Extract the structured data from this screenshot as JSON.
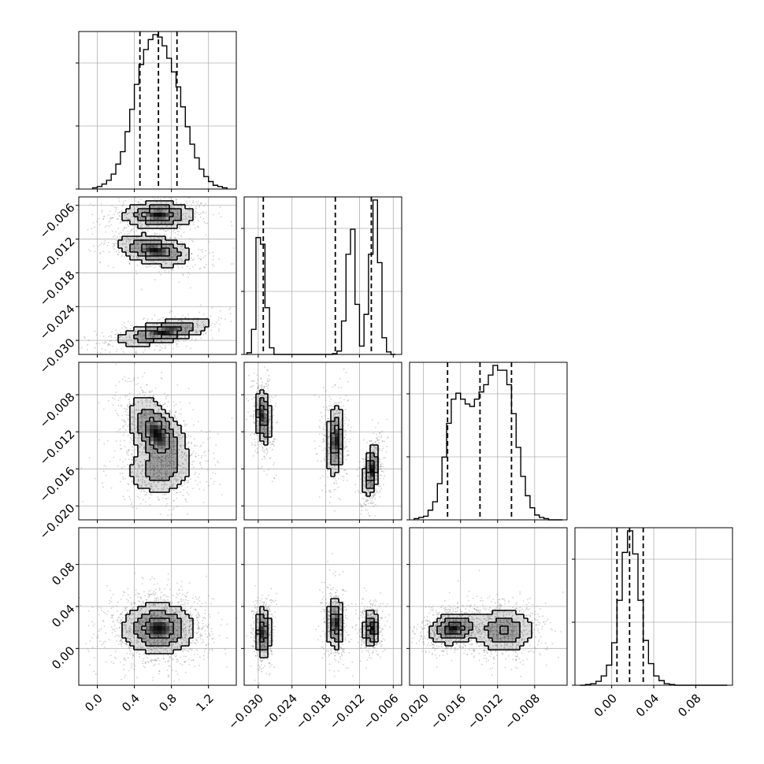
{
  "chart_data": {
    "type": "corner",
    "grid": true,
    "colors": {
      "line": "#000000",
      "grid": "#b0b0b0",
      "density": "#000000",
      "points": "#7a7a7a",
      "background": "#ffffff"
    },
    "parameters": [
      {
        "range": [
          -0.2,
          1.5
        ],
        "ticks": [
          0.0,
          0.4,
          0.8,
          1.2
        ],
        "tick_labels": [
          "0.0",
          "0.4",
          "0.8",
          "1.2"
        ]
      },
      {
        "range": [
          -0.0325,
          -0.0045
        ],
        "ticks": [
          -0.03,
          -0.024,
          -0.018,
          -0.012,
          -0.006
        ],
        "tick_labels": [
          "−0.030",
          "−0.024",
          "−0.018",
          "−0.012",
          "−0.006"
        ]
      },
      {
        "range": [
          -0.0215,
          -0.0045
        ],
        "ticks": [
          -0.02,
          -0.016,
          -0.012,
          -0.008
        ],
        "tick_labels": [
          "−0.020",
          "−0.016",
          "−0.012",
          "−0.008"
        ]
      },
      {
        "range": [
          -0.035,
          0.115
        ],
        "ticks": [
          0.0,
          0.04,
          0.08
        ],
        "tick_labels": [
          "0.00",
          "0.04",
          "0.08"
        ]
      }
    ],
    "marginals": [
      {
        "param": 0,
        "quantiles": [
          0.46,
          0.66,
          0.86
        ],
        "bins": [
          -0.05,
          0.0,
          0.05,
          0.1,
          0.15,
          0.2,
          0.25,
          0.3,
          0.35,
          0.4,
          0.45,
          0.5,
          0.55,
          0.6,
          0.65,
          0.7,
          0.75,
          0.8,
          0.85,
          0.9,
          0.95,
          1.0,
          1.05,
          1.1,
          1.15,
          1.2,
          1.25,
          1.3,
          1.35,
          1.4
        ],
        "counts": [
          1,
          2,
          4,
          7,
          12,
          20,
          30,
          46,
          64,
          84,
          100,
          112,
          120,
          124,
          122,
          115,
          105,
          94,
          82,
          66,
          50,
          36,
          25,
          16,
          10,
          6,
          3,
          2,
          1
        ]
      },
      {
        "param": 1,
        "quantiles": [
          -0.0291,
          -0.0163,
          -0.0099
        ],
        "bins": [
          -0.032,
          -0.0312,
          -0.0304,
          -0.0296,
          -0.0288,
          -0.028,
          -0.0272,
          -0.0264,
          -0.0256,
          -0.0248,
          -0.024,
          -0.0232,
          -0.0224,
          -0.0216,
          -0.0208,
          -0.02,
          -0.0192,
          -0.0184,
          -0.0176,
          -0.0168,
          -0.016,
          -0.0152,
          -0.0144,
          -0.0136,
          -0.0128,
          -0.012,
          -0.0112,
          -0.0104,
          -0.0096,
          -0.0088,
          -0.008,
          -0.0072,
          -0.0064,
          -0.0056
        ],
        "counts": [
          2,
          30,
          140,
          132,
          56,
          8,
          0,
          0,
          0,
          0,
          0,
          0,
          0,
          0,
          0,
          0,
          0,
          0,
          0,
          1,
          4,
          40,
          120,
          150,
          60,
          10,
          48,
          120,
          185,
          110,
          20,
          3,
          0
        ]
      },
      {
        "param": 2,
        "quantiles": [
          -0.0174,
          -0.0139,
          -0.0105
        ],
        "bins": [
          -0.021,
          -0.0205,
          -0.02,
          -0.0195,
          -0.019,
          -0.0185,
          -0.018,
          -0.0175,
          -0.017,
          -0.0165,
          -0.016,
          -0.0155,
          -0.015,
          -0.0145,
          -0.014,
          -0.0135,
          -0.013,
          -0.0125,
          -0.012,
          -0.0115,
          -0.011,
          -0.0105,
          -0.01,
          -0.0095,
          -0.009,
          -0.0085,
          -0.008,
          -0.0075,
          -0.007,
          -0.0065,
          -0.006,
          -0.0055,
          -0.005
        ],
        "counts": [
          1,
          2,
          3,
          8,
          15,
          30,
          52,
          80,
          100,
          105,
          100,
          96,
          94,
          100,
          106,
          112,
          120,
          128,
          124,
          124,
          112,
          88,
          60,
          36,
          20,
          10,
          4,
          2,
          1,
          0,
          0,
          0
        ]
      },
      {
        "param": 3,
        "quantiles": [
          0.005,
          0.017,
          0.03
        ],
        "bins": [
          -0.03,
          -0.025,
          -0.02,
          -0.015,
          -0.01,
          -0.005,
          0.0,
          0.005,
          0.01,
          0.015,
          0.02,
          0.025,
          0.03,
          0.035,
          0.04,
          0.045,
          0.05,
          0.055,
          0.06,
          0.065,
          0.07,
          0.075,
          0.08,
          0.085,
          0.09,
          0.095,
          0.1,
          0.105,
          0.11
        ],
        "counts": [
          0,
          1,
          2,
          5,
          12,
          26,
          55,
          110,
          172,
          200,
          170,
          110,
          58,
          28,
          12,
          6,
          2,
          1,
          0,
          0,
          0,
          0,
          0,
          0,
          0,
          0,
          0,
          0
        ]
      }
    ],
    "joint": [
      {
        "x": 0,
        "y": 1,
        "modes": [
          {
            "cx": 0.66,
            "cy": -0.0077,
            "sx": 0.21,
            "sy": 0.00125,
            "rho": 0.0,
            "w": 1.0
          },
          {
            "cx": 0.62,
            "cy": -0.014,
            "sx": 0.21,
            "sy": 0.0015,
            "rho": -0.35,
            "w": 1.0
          },
          {
            "cx": 0.72,
            "cy": -0.0285,
            "sx": 0.27,
            "sy": 0.0013,
            "rho": 0.6,
            "w": 1.0
          }
        ]
      },
      {
        "x": 0,
        "y": 2,
        "modes": [
          {
            "cx": 0.58,
            "cy": -0.0115,
            "sx": 0.14,
            "sy": 0.002,
            "rho": -0.4,
            "w": 1.0
          },
          {
            "cx": 0.72,
            "cy": -0.0128,
            "sx": 0.15,
            "sy": 0.0017,
            "rho": -0.3,
            "w": 0.8
          },
          {
            "cx": 0.66,
            "cy": -0.0163,
            "sx": 0.2,
            "sy": 0.0014,
            "rho": 0.0,
            "w": 0.9
          }
        ]
      },
      {
        "x": 0,
        "y": 3,
        "modes": [
          {
            "cx": 0.66,
            "cy": 0.019,
            "sx": 0.21,
            "sy": 0.013,
            "rho": 0.0,
            "w": 1.0
          }
        ]
      },
      {
        "x": 1,
        "y": 2,
        "modes": [
          {
            "cx": -0.0291,
            "cy": -0.0104,
            "sx": 0.00075,
            "sy": 0.0016,
            "rho": -0.2,
            "w": 1.0
          },
          {
            "cx": -0.0163,
            "cy": -0.013,
            "sx": 0.00085,
            "sy": 0.002,
            "rho": 0.1,
            "w": 1.0
          },
          {
            "cx": -0.0099,
            "cy": -0.0163,
            "sx": 0.00075,
            "sy": 0.0015,
            "rho": 0.4,
            "w": 1.0
          }
        ]
      },
      {
        "x": 1,
        "y": 3,
        "modes": [
          {
            "cx": -0.0291,
            "cy": 0.015,
            "sx": 0.00075,
            "sy": 0.013,
            "rho": 0.0,
            "w": 1.0
          },
          {
            "cx": -0.0163,
            "cy": 0.024,
            "sx": 0.00085,
            "sy": 0.013,
            "rho": 0.0,
            "w": 1.0
          },
          {
            "cx": -0.0099,
            "cy": 0.019,
            "sx": 0.00075,
            "sy": 0.009,
            "rho": 0.0,
            "w": 1.0
          }
        ]
      },
      {
        "x": 2,
        "y": 3,
        "modes": [
          {
            "cx": -0.0168,
            "cy": 0.019,
            "sx": 0.0014,
            "sy": 0.008,
            "rho": 0.2,
            "w": 1.0
          },
          {
            "cx": -0.0113,
            "cy": 0.017,
            "sx": 0.0017,
            "sy": 0.011,
            "rho": 0.0,
            "w": 0.8
          }
        ]
      }
    ]
  }
}
